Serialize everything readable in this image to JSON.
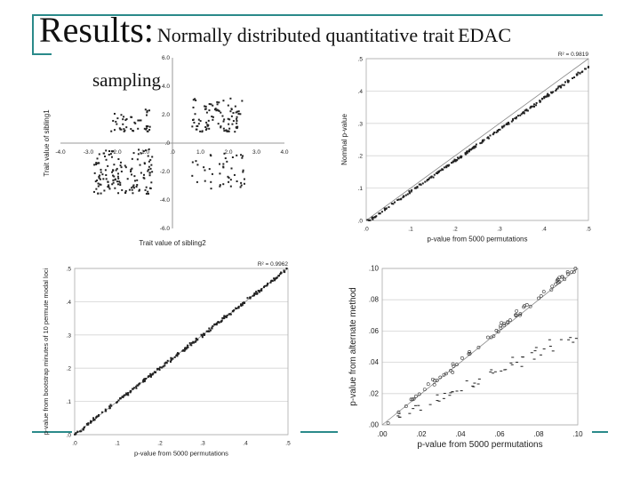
{
  "slide": {
    "title_main": "Results:",
    "title_sub": "Normally distributed quantitative trait",
    "title_tag": "EDAC",
    "sampling_label": "sampling",
    "accent_color": "#2a8a8a"
  },
  "chart_data": [
    {
      "type": "scatter",
      "xlabel": "Trait value of sibling2",
      "ylabel": "Trait value of sibling1",
      "xlim": [
        -4,
        4
      ],
      "ylim": [
        -6,
        6
      ],
      "x_ticks": [
        "-4.0",
        "-3.0",
        "-2.0",
        "-1.0",
        ".0",
        "1.0",
        "2.0",
        "3.0",
        "4.0"
      ],
      "y_ticks": [
        "6.0",
        "4.0",
        "2.0",
        ".0",
        "-2.0",
        "-4.0",
        "-6.0"
      ],
      "clusters": [
        {
          "name": "upper-left",
          "x_range": [
            -2.2,
            -0.8
          ],
          "y_range": [
            0.8,
            2.4
          ],
          "n": 45
        },
        {
          "name": "upper-right",
          "x_range": [
            0.7,
            2.5
          ],
          "y_range": [
            0.8,
            3.2
          ],
          "n": 95
        },
        {
          "name": "lower-left",
          "x_range": [
            -2.8,
            -0.7
          ],
          "y_range": [
            -3.6,
            -0.4
          ],
          "n": 140
        },
        {
          "name": "lower-right",
          "x_range": [
            0.7,
            2.6
          ],
          "y_range": [
            -3.2,
            -0.6
          ],
          "n": 45
        }
      ],
      "grid": false
    },
    {
      "type": "scatter",
      "xlabel": "p-value from 5000 permutations",
      "ylabel": "Nominal p-value",
      "annotation": "R² = 0.9819",
      "xlim": [
        0,
        0.5
      ],
      "ylim": [
        0,
        0.5
      ],
      "x_ticks": [
        ".0",
        ".1",
        ".2",
        ".3",
        ".4",
        ".5"
      ],
      "y_ticks": [
        ".5",
        ".4",
        ".3",
        ".2",
        ".1",
        ".0"
      ],
      "reference_line": "y = x",
      "points_relation": "y ≈ 0.97·x, slightly below identity",
      "grid": true
    },
    {
      "type": "scatter",
      "xlabel": "p-value from 5000 permutations",
      "ylabel": "p-value from bootstrap minutes of 10 permute modal loci",
      "annotation": "R² = 0.9962",
      "xlim": [
        0,
        0.5
      ],
      "ylim": [
        0,
        0.5
      ],
      "x_ticks": [
        ".0",
        ".1",
        ".2",
        ".3",
        ".4",
        ".5"
      ],
      "y_ticks": [
        ".5",
        ".4",
        ".3",
        ".2",
        ".1",
        ".0"
      ],
      "reference_line": "y = x",
      "points_relation": "y ≈ x",
      "grid": true
    },
    {
      "type": "scatter",
      "xlabel": "p-value from 5000 permutations",
      "ylabel": "p-value from alternate method",
      "xlim": [
        0,
        0.1
      ],
      "ylim": [
        0,
        0.1
      ],
      "x_ticks": [
        ".00",
        ".02",
        ".04",
        ".06",
        ".08",
        ".10"
      ],
      "y_ticks": [
        ".10",
        ".08",
        ".06",
        ".04",
        ".02",
        ".00"
      ],
      "reference_line": "y = x",
      "series": [
        {
          "marker": "open-circle",
          "relation": "y ≈ x"
        },
        {
          "marker": "dash",
          "relation": "y ≈ 0.6·x"
        }
      ],
      "grid": true
    }
  ]
}
